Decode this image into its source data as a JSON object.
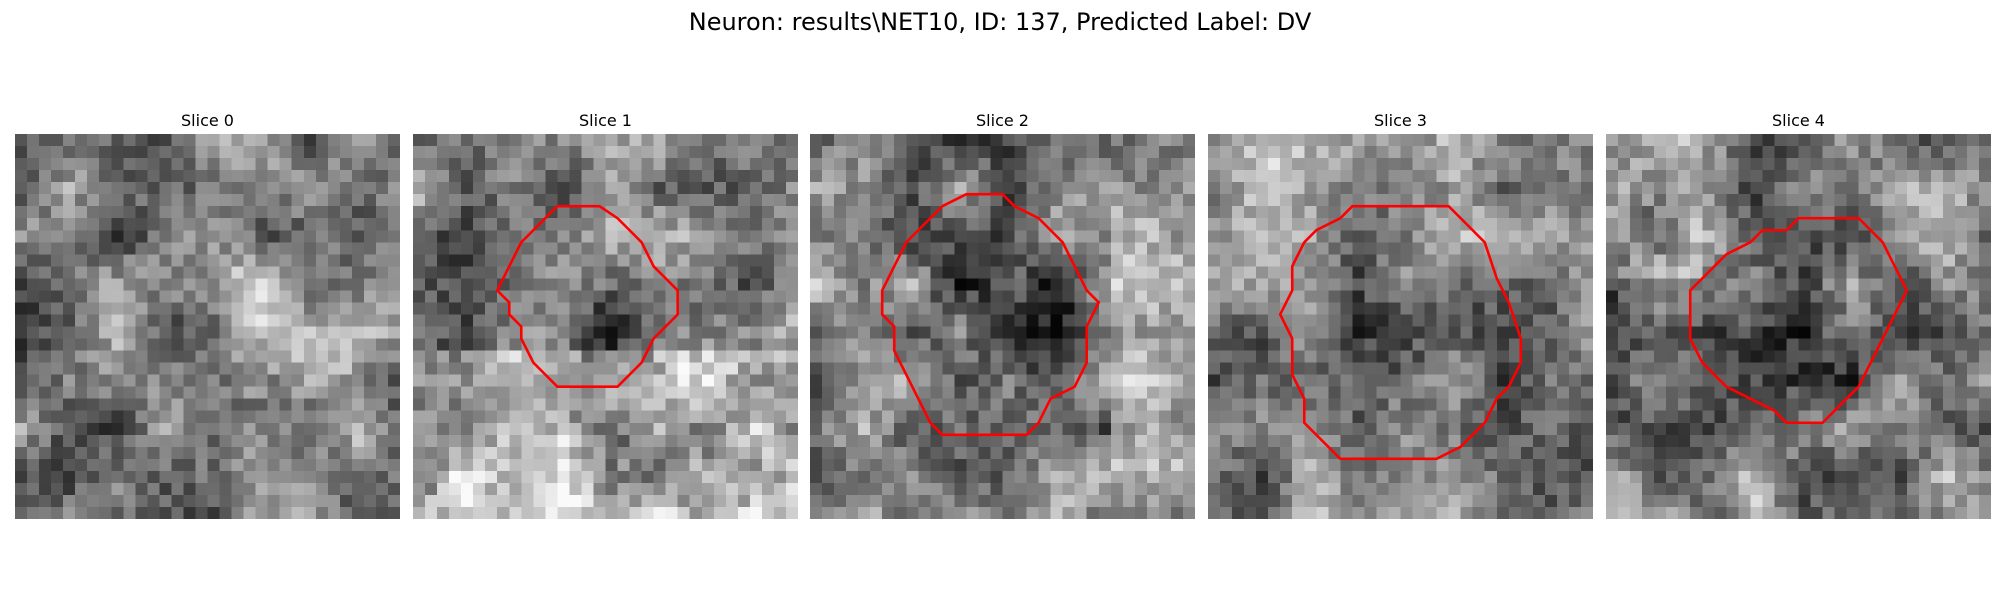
{
  "figure": {
    "title": "Neuron: results\\NET10, ID: 137, Predicted Label: DV"
  },
  "panels": [
    {
      "title": "Slice 0",
      "has_contour": false
    },
    {
      "title": "Slice 1",
      "has_contour": true
    },
    {
      "title": "Slice 2",
      "has_contour": true
    },
    {
      "title": "Slice 3",
      "has_contour": true
    },
    {
      "title": "Slice 4",
      "has_contour": true
    }
  ],
  "colors": {
    "contour": "#ff0000",
    "colormap": "grayscale"
  }
}
